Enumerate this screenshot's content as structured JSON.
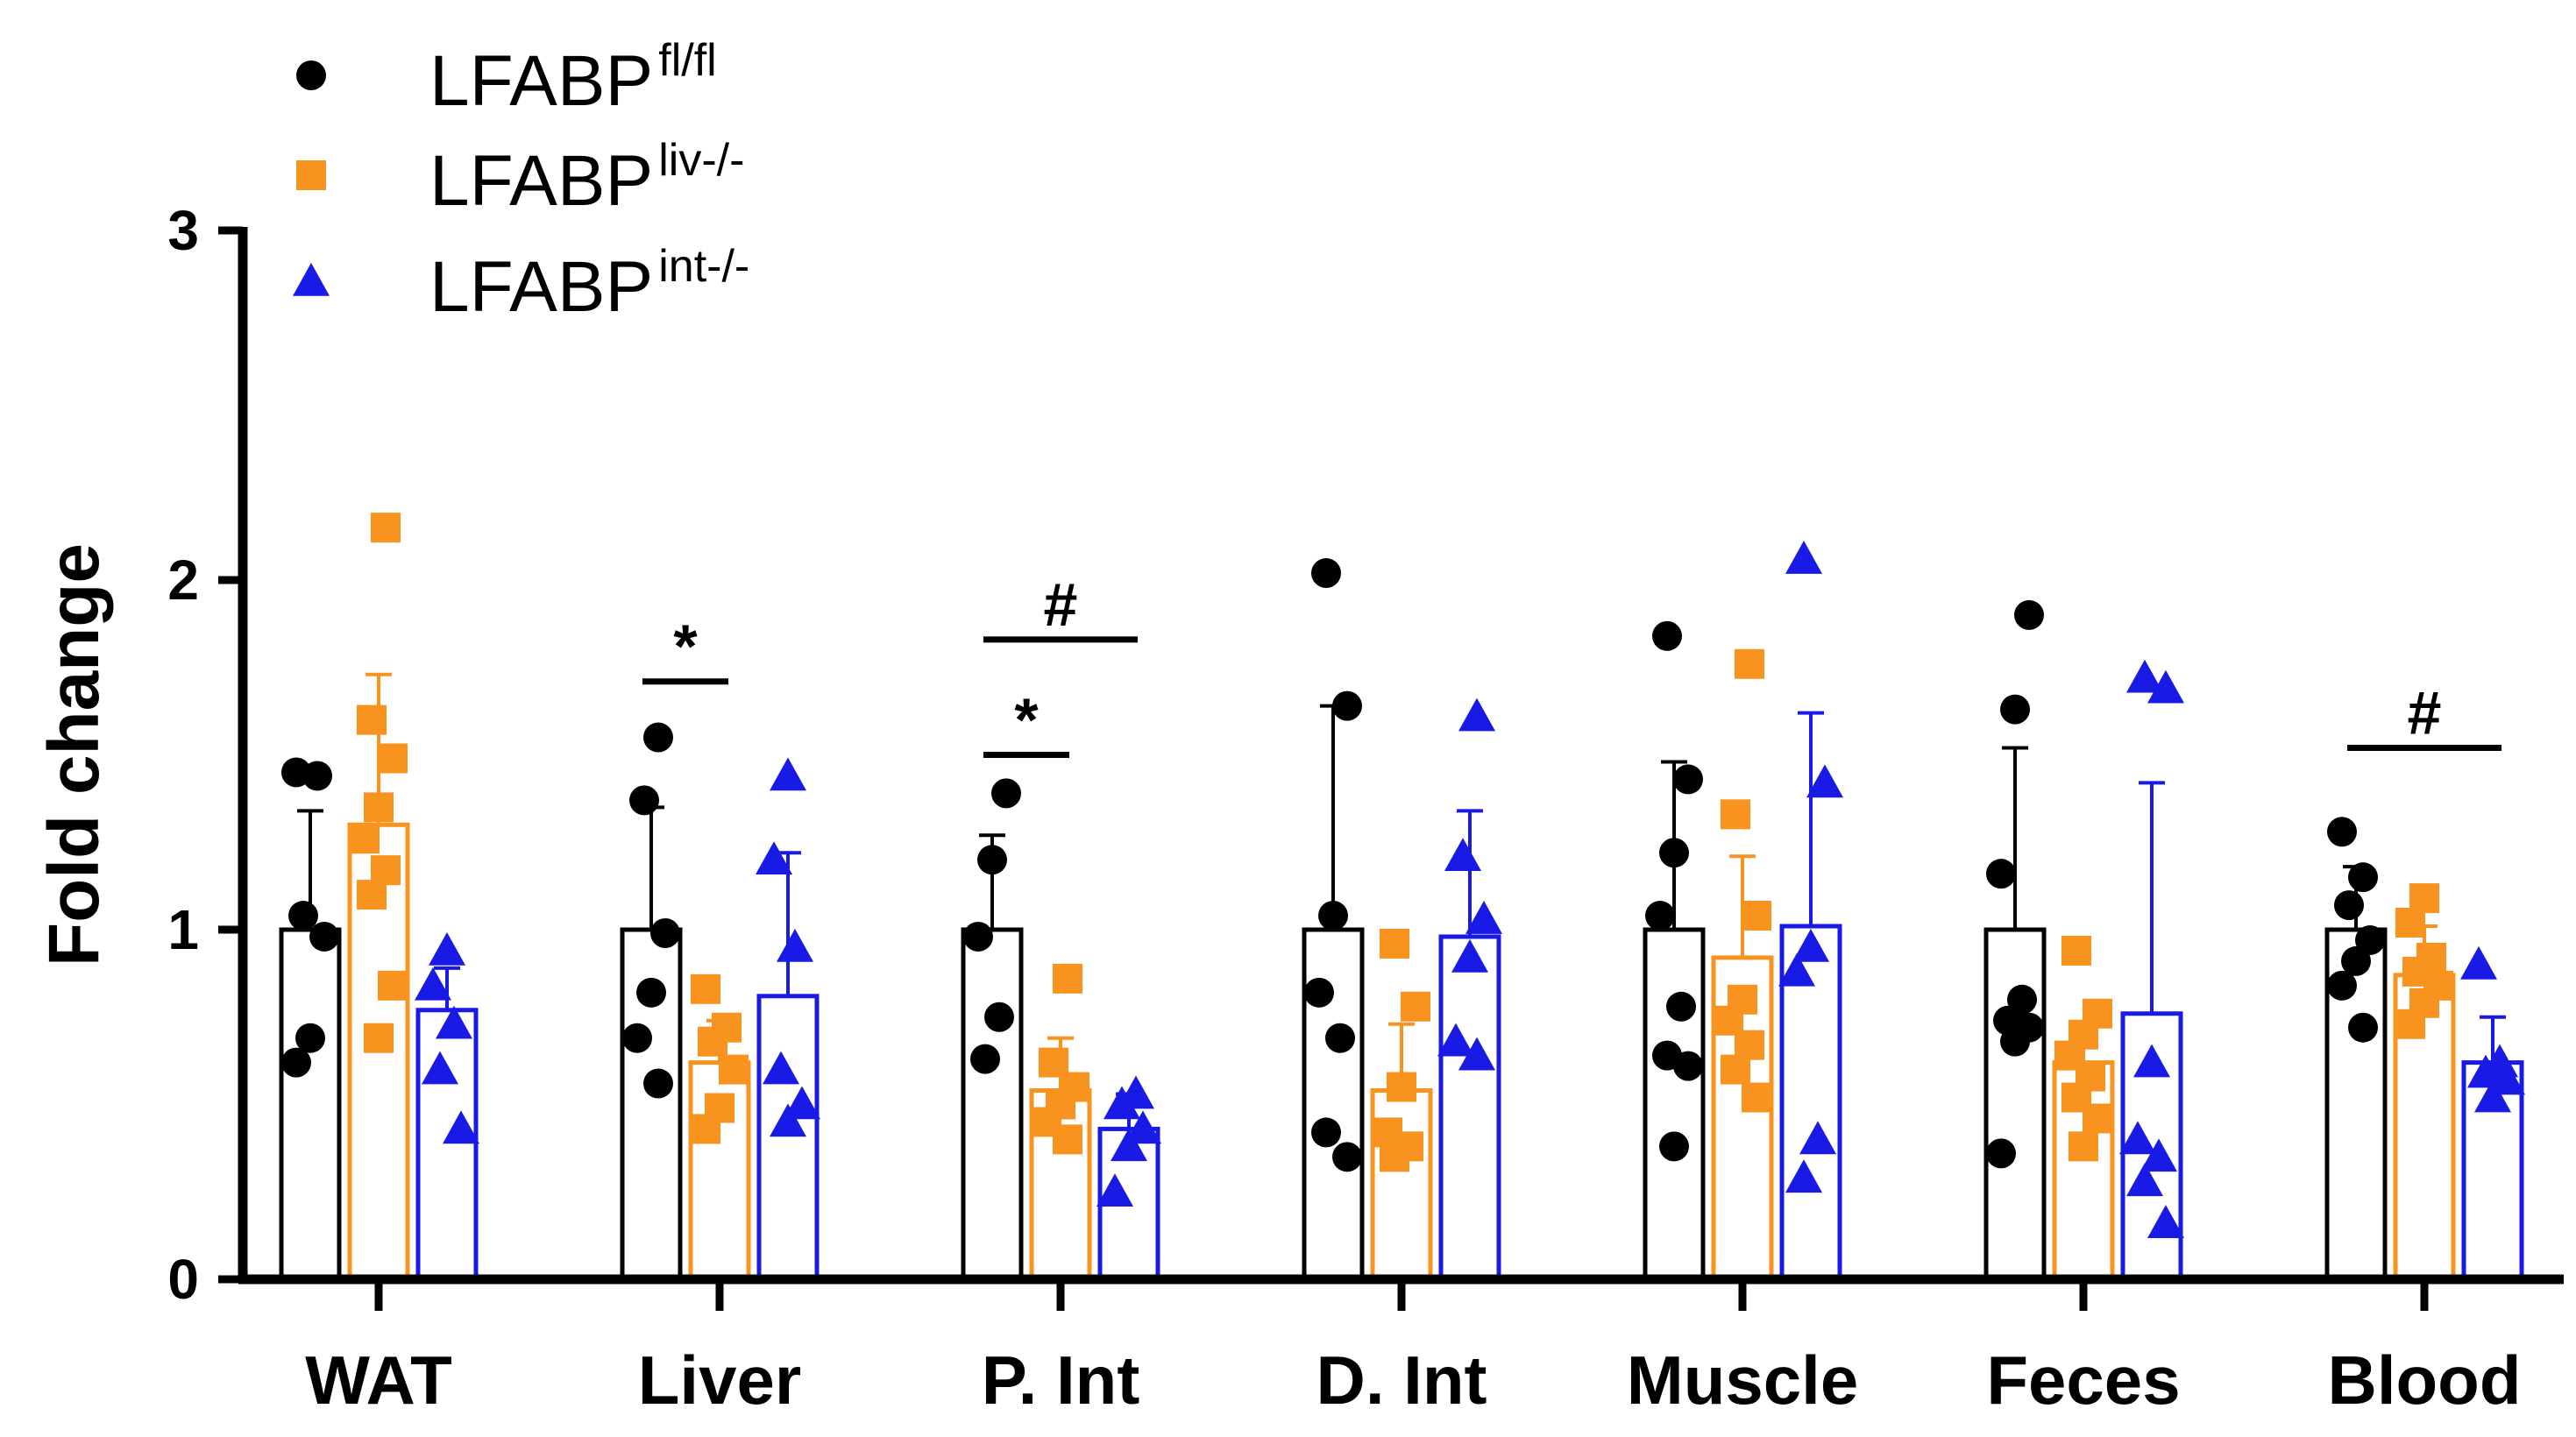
{
  "chart_data": {
    "type": "bar",
    "ylabel": "Fold change",
    "xlabel": "",
    "ylim": [
      0,
      3
    ],
    "yticks": [
      "0",
      "1",
      "2",
      "3"
    ],
    "categories": [
      "WAT",
      "Liver",
      "P. Int",
      "D. Int",
      "Muscle",
      "Feces",
      "Blood"
    ],
    "legend_position": "top-left",
    "series": [
      {
        "name": "LFABP",
        "sup": "fl/fl",
        "color": "#000000",
        "marker": "circle",
        "values": [
          1.0,
          1.0,
          1.0,
          1.0,
          1.0,
          1.0,
          1.0
        ],
        "sd": [
          0.34,
          0.35,
          0.27,
          0.64,
          0.48,
          0.52,
          0.18
        ],
        "points": [
          [
            0.62,
            0.69,
            0.98,
            1.04,
            1.44,
            1.45
          ],
          [
            0.56,
            0.69,
            0.82,
            0.99,
            1.37,
            1.55
          ],
          [
            0.63,
            0.75,
            0.98,
            1.2,
            1.39
          ],
          [
            0.35,
            0.42,
            0.69,
            0.82,
            1.04,
            1.64,
            2.02
          ],
          [
            0.38,
            0.61,
            0.64,
            0.78,
            1.04,
            1.22,
            1.43,
            1.84
          ],
          [
            0.36,
            0.68,
            0.72,
            0.74,
            0.8,
            1.16,
            1.63,
            1.9
          ],
          [
            0.72,
            0.84,
            0.91,
            0.97,
            1.07,
            1.15,
            1.28
          ]
        ]
      },
      {
        "name": "LFABP",
        "sup": "liv-/-",
        "color": "#F7931E",
        "marker": "square",
        "values": [
          1.3,
          0.62,
          0.54,
          0.54,
          0.92,
          0.62,
          0.87
        ],
        "sd": [
          0.43,
          0.12,
          0.15,
          0.19,
          0.29,
          0.09,
          0.14
        ],
        "points": [
          [
            0.69,
            0.84,
            1.1,
            1.17,
            1.26,
            1.35,
            1.49,
            1.6,
            2.15
          ],
          [
            0.43,
            0.49,
            0.6,
            0.68,
            0.72,
            0.83
          ],
          [
            0.4,
            0.45,
            0.5,
            0.55,
            0.62,
            0.86
          ],
          [
            0.35,
            0.38,
            0.42,
            0.55,
            0.78,
            0.96
          ],
          [
            0.52,
            0.6,
            0.67,
            0.74,
            0.8,
            1.04,
            1.33,
            1.76
          ],
          [
            0.38,
            0.46,
            0.52,
            0.58,
            0.64,
            0.7,
            0.76,
            0.94
          ],
          [
            0.73,
            0.79,
            0.84,
            0.88,
            0.92,
            1.02,
            1.09
          ]
        ]
      },
      {
        "name": "LFABP",
        "sup": "int-/-",
        "color": "#1A1AE6",
        "marker": "triangle",
        "values": [
          0.77,
          0.81,
          0.43,
          0.98,
          1.01,
          0.76,
          0.62
        ],
        "sd": [
          0.12,
          0.41,
          0.1,
          0.36,
          0.61,
          0.66,
          0.13
        ],
        "points": [
          [
            0.43,
            0.6,
            0.73,
            0.84,
            0.94
          ],
          [
            0.45,
            0.5,
            0.6,
            0.95,
            1.2,
            1.44
          ],
          [
            0.25,
            0.38,
            0.43,
            0.5,
            0.53
          ],
          [
            0.64,
            0.68,
            0.92,
            1.03,
            1.21,
            1.61
          ],
          [
            0.29,
            0.4,
            0.88,
            0.95,
            1.42,
            2.06
          ],
          [
            0.16,
            0.28,
            0.35,
            0.4,
            0.62,
            1.69,
            1.72
          ],
          [
            0.52,
            0.57,
            0.59,
            0.62,
            0.9
          ]
        ]
      }
    ],
    "annotations": [
      {
        "label": "*",
        "category_index": 1,
        "from_series": 0,
        "to_series": 1,
        "y": 1.71
      },
      {
        "label": "#",
        "category_index": 2,
        "from_series": 0,
        "to_series": 2,
        "y": 1.83
      },
      {
        "label": "*",
        "category_index": 2,
        "from_series": 0,
        "to_series": 1,
        "y": 1.5
      },
      {
        "label": "#",
        "category_index": 6,
        "from_series": 0,
        "to_series": 2,
        "y": 1.52
      }
    ]
  }
}
